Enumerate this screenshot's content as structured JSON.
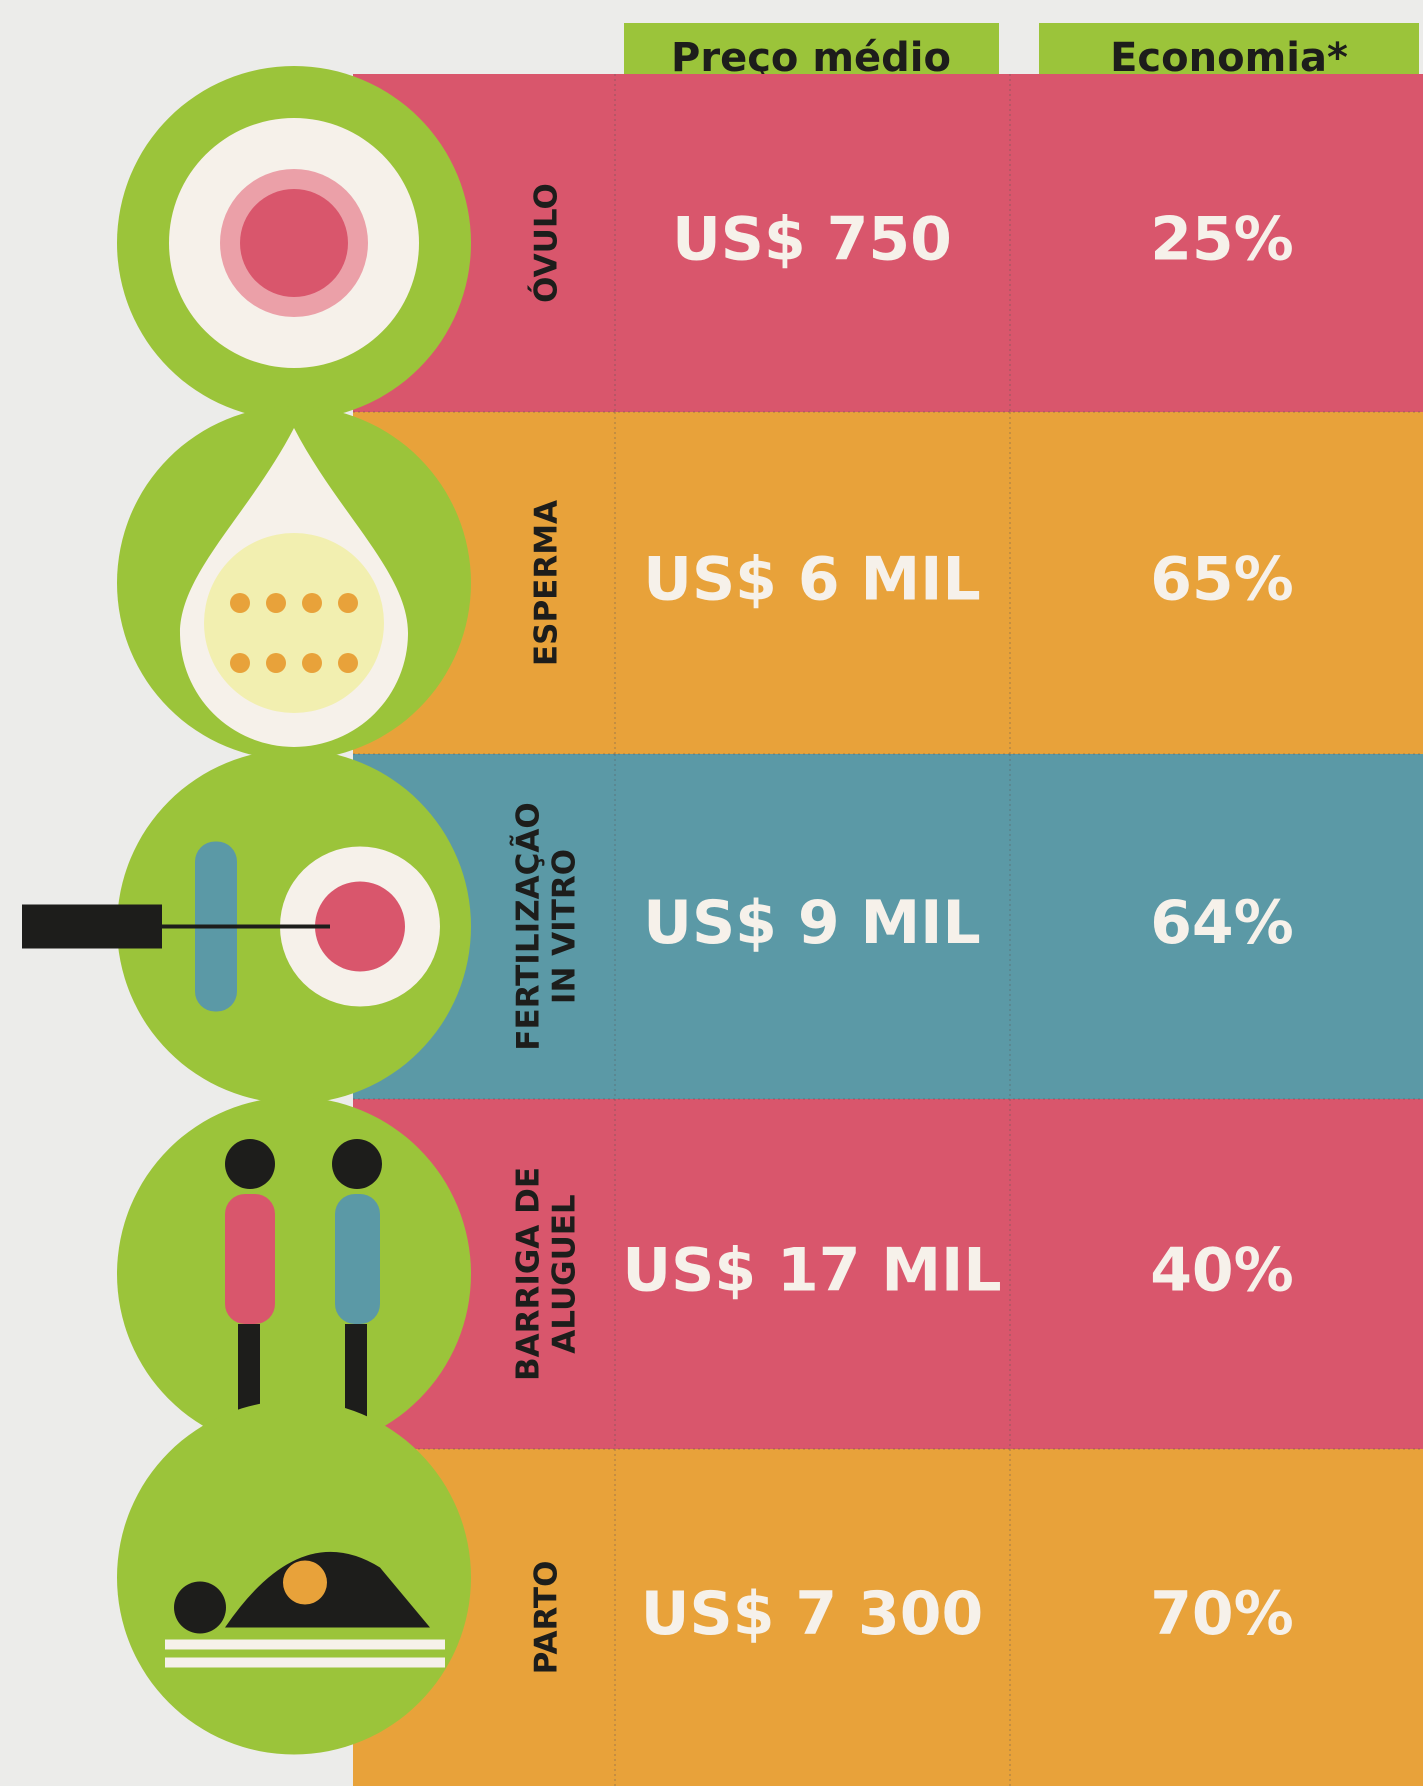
{
  "header": {
    "columns": [
      "Preço médio",
      "Economia*"
    ]
  },
  "rows": [
    {
      "label": [
        "ÓVULO"
      ],
      "price": "US$ 750",
      "economy": "25%"
    },
    {
      "label": [
        "ESPERMA"
      ],
      "price": "US$ 6 MIL",
      "economy": "65%"
    },
    {
      "label": [
        "FERTILIZAÇÃO",
        "IN VITRO"
      ],
      "price": "US$ 9 MIL",
      "economy": "64%"
    },
    {
      "label": [
        "BARRIGA DE",
        "ALUGUEL"
      ],
      "price": "US$ 17 MIL",
      "economy": "40%"
    },
    {
      "label": [
        "PARTO"
      ],
      "price": "US$ 7 300",
      "economy": "70%"
    }
  ]
}
